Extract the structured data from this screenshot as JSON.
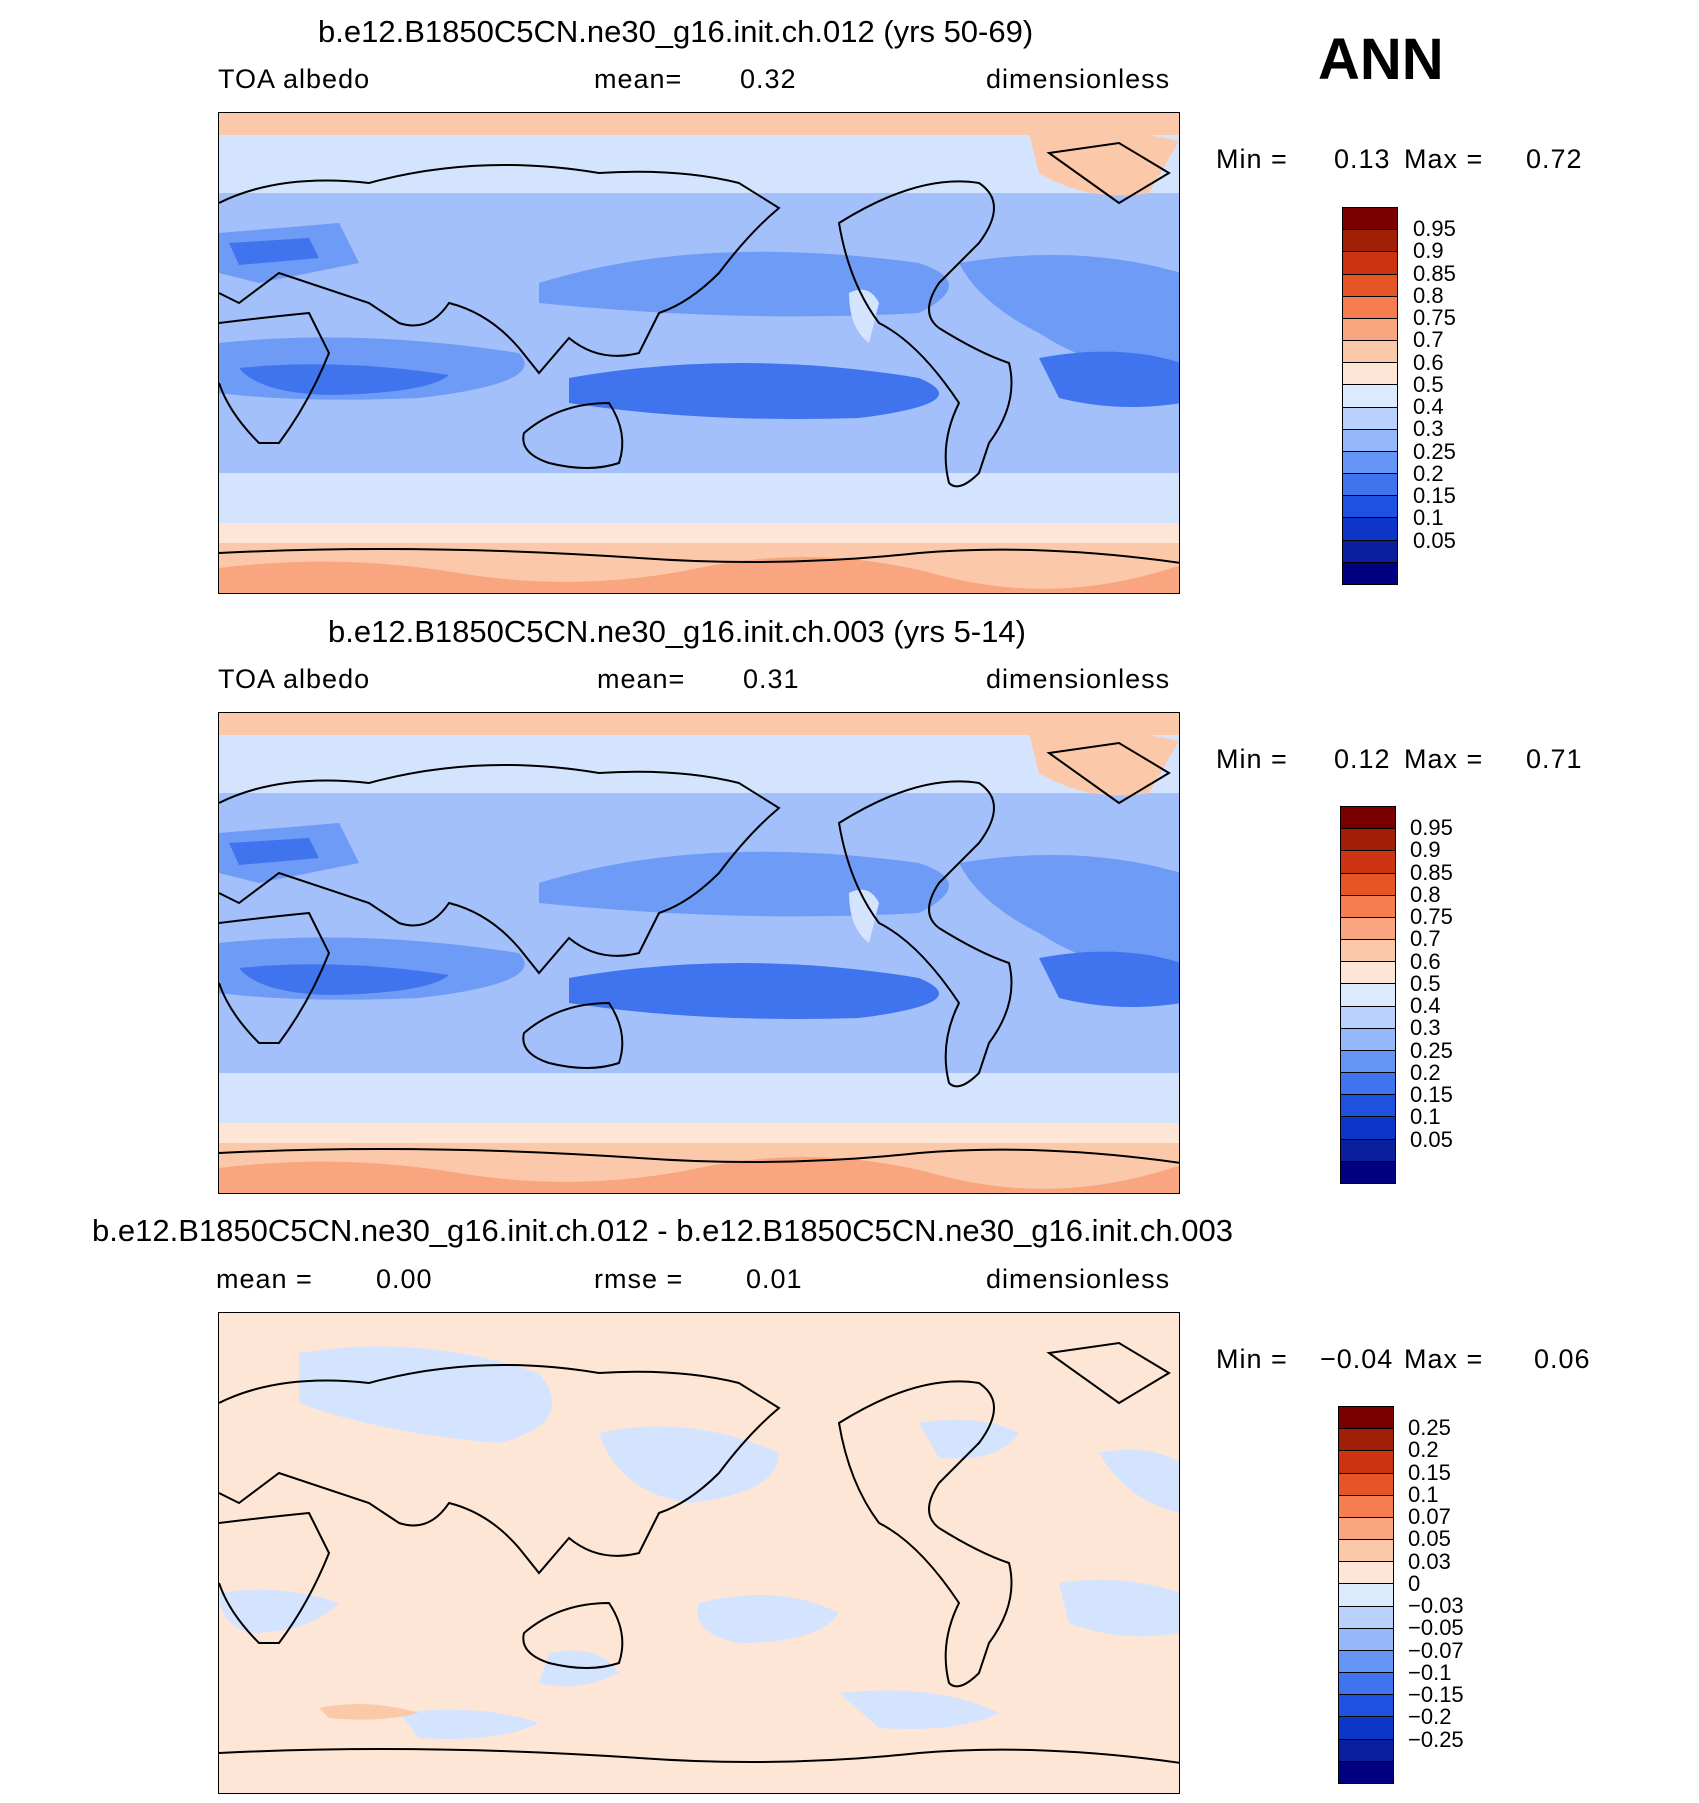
{
  "season": "ANN",
  "palette": {
    "full": [
      "#000080",
      "#0a1f9e",
      "#0d36c8",
      "#1d52e0",
      "#3f74ee",
      "#6696f5",
      "#94b8fb",
      "#bad1fd",
      "#dceafe",
      "#fde6d6",
      "#fbc9a9",
      "#f9a57f",
      "#f57d4f",
      "#e65526",
      "#cc3311",
      "#a11f06",
      "#7a0000"
    ],
    "base_levels": [
      "#1d52e0",
      "#3f74ee",
      "#6e9bf5",
      "#a3c0fb",
      "#d5e4fe",
      "#fde6d6",
      "#fbc9a9",
      "#f9a57f"
    ],
    "diff_levels": [
      "#a3c0fb",
      "#d5e4fe",
      "#fde6d6",
      "#fbc9a9",
      "#f9a57f",
      "#e65526"
    ]
  },
  "panels": [
    {
      "title": "b.e12.B1850C5CN.ne30_g16.init.ch.012 (yrs 50-69)",
      "left_label": "TOA albedo",
      "mid_label": "mean=",
      "mid_value": "0.32",
      "right_label": "dimensionless",
      "min_label": "Min =",
      "min_value": "0.13",
      "max_label": "Max =",
      "max_value": "0.72",
      "colorbar_ticks": [
        "0.95",
        "0.9",
        "0.85",
        "0.8",
        "0.75",
        "0.7",
        "0.6",
        "0.5",
        "0.4",
        "0.3",
        "0.25",
        "0.2",
        "0.15",
        "0.1",
        "0.05"
      ]
    },
    {
      "title": "b.e12.B1850C5CN.ne30_g16.init.ch.003 (yrs 5-14)",
      "left_label": "TOA albedo",
      "mid_label": "mean=",
      "mid_value": "0.31",
      "right_label": "dimensionless",
      "min_label": "Min =",
      "min_value": "0.12",
      "max_label": "Max =",
      "max_value": "0.71",
      "colorbar_ticks": [
        "0.95",
        "0.9",
        "0.85",
        "0.8",
        "0.75",
        "0.7",
        "0.6",
        "0.5",
        "0.4",
        "0.3",
        "0.25",
        "0.2",
        "0.15",
        "0.1",
        "0.05"
      ]
    },
    {
      "title": "b.e12.B1850C5CN.ne30_g16.init.ch.012 - b.e12.B1850C5CN.ne30_g16.init.ch.003",
      "left_label": "mean =",
      "left_value": "0.00",
      "mid_label": "rmse =",
      "mid_value": "0.01",
      "right_label": "dimensionless",
      "min_label": "Min =",
      "min_value": "−0.04",
      "max_label": "Max =",
      "max_value": "0.06",
      "colorbar_ticks": [
        "0.25",
        "0.2",
        "0.15",
        "0.1",
        "0.07",
        "0.05",
        "0.03",
        "0",
        "−0.03",
        "−0.05",
        "−0.07",
        "−0.1",
        "−0.15",
        "−0.2",
        "−0.25"
      ]
    }
  ]
}
